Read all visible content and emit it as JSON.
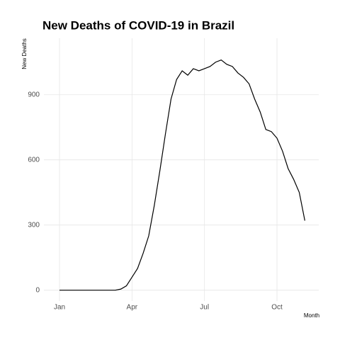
{
  "chart_data": {
    "type": "line",
    "title": "New Deaths of COVID-19 in Brazil",
    "y_label": "New Deaths",
    "x_label": "Month",
    "categories": [
      "Jan",
      null,
      null,
      null,
      null,
      null,
      null,
      null,
      null,
      null,
      null,
      null,
      null,
      "Apr",
      null,
      null,
      null,
      null,
      null,
      null,
      null,
      null,
      null,
      null,
      null,
      null,
      "Jul",
      null,
      null,
      null,
      null,
      null,
      null,
      null,
      null,
      null,
      null,
      null,
      null,
      "Oct",
      null,
      null,
      null,
      null,
      null
    ],
    "series": [
      {
        "name": "New Deaths",
        "color": "#000000",
        "values": [
          0,
          0,
          0,
          0,
          0,
          0,
          0,
          0,
          0,
          0,
          0,
          5,
          20,
          60,
          100,
          170,
          250,
          390,
          550,
          720,
          880,
          970,
          1010,
          990,
          1020,
          1010,
          1020,
          1030,
          1050,
          1060,
          1040,
          1030,
          1000,
          980,
          950,
          880,
          820,
          740,
          730,
          700,
          640,
          560,
          510,
          450,
          320
        ]
      }
    ],
    "ylim": [
      -50,
      1160
    ],
    "yticks": [
      0,
      300,
      600,
      900
    ],
    "grid": true
  }
}
